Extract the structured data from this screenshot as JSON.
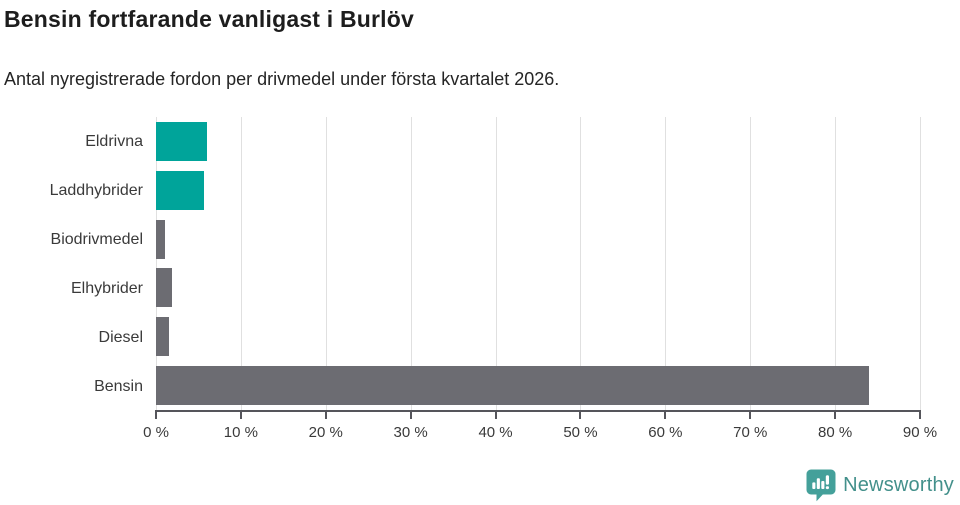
{
  "chart_data": {
    "type": "bar",
    "orientation": "horizontal",
    "title": "Bensin fortfarande vanligast i Burlöv",
    "subtitle": "Antal nyregistrerade fordon per drivmedel under första kvartalet 2026.",
    "categories": [
      "Eldrivna",
      "Laddhybrider",
      "Biodrivmedel",
      "Elhybrider",
      "Diesel",
      "Bensin"
    ],
    "values": [
      6,
      5.6,
      1.1,
      1.9,
      1.5,
      84
    ],
    "unit": "%",
    "xlim": [
      0,
      90
    ],
    "x_ticks": [
      "0 %",
      "10 %",
      "20 %",
      "30 %",
      "40 %",
      "50 %",
      "60 %",
      "70 %",
      "80 %",
      "90 %"
    ],
    "bar_colors": [
      "#00a49a",
      "#00a49a",
      "#6c6c72",
      "#6c6c72",
      "#6c6c72",
      "#6c6c72"
    ],
    "grid": "vertical",
    "legend": "none"
  },
  "colors": {
    "accent_teal": "#00a49a",
    "bar_gray": "#6c6c72",
    "gridline": "#e0e0e0",
    "axis": "#55555b",
    "title_text": "#1d1d1d",
    "subtitle_text": "#252525",
    "label_text": "#3a3a3a"
  },
  "branding": {
    "logo_text": "Newsworthy",
    "logo_text_color": "#43908b",
    "logo_icon": "speech-bubble-with-bar-chart-and-exclamation",
    "logo_icon_color": "#44a09a"
  }
}
